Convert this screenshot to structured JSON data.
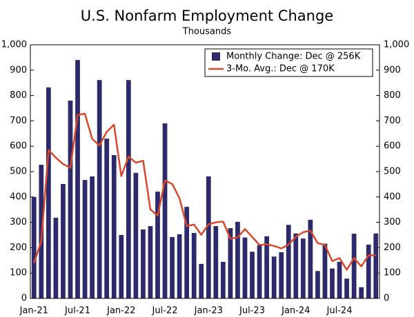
{
  "chart_data": {
    "type": "bar_line",
    "title": "U.S. Nonfarm Employment Change",
    "subtitle": "Thousands",
    "categories": [
      "Jan-21",
      null,
      null,
      null,
      null,
      null,
      "Jul-21",
      null,
      null,
      null,
      null,
      null,
      "Jan-22",
      null,
      null,
      null,
      null,
      null,
      "Jul-22",
      null,
      null,
      null,
      null,
      null,
      "Jan-23",
      null,
      null,
      null,
      null,
      null,
      "Jul-23",
      null,
      null,
      null,
      null,
      null,
      "Jan-24",
      null,
      null,
      null,
      null,
      null,
      "Jul-24",
      null,
      null,
      null,
      null,
      null
    ],
    "series": [
      {
        "name": "Monthly Change: Dec @ 256K",
        "color": "#2d2a6c",
        "kind": "bar",
        "values": [
          400,
          527,
          832,
          318,
          451,
          780,
          940,
          467,
          481,
          861,
          630,
          565,
          250,
          861,
          495,
          272,
          285,
          421,
          690,
          242,
          253,
          361,
          258,
          136,
          481,
          285,
          144,
          277,
          302,
          240,
          184,
          210,
          245,
          165,
          182,
          290,
          256,
          236,
          310,
          108,
          216,
          118,
          144,
          78,
          255,
          44,
          212,
          256
        ]
      },
      {
        "name": "3-Mo. Avg.: Dec @ 170K",
        "color": "#d9472b",
        "kind": "line",
        "values": [
          140,
          225,
          585,
          555,
          530,
          515,
          724,
          728,
          629,
          603,
          657,
          685,
          482,
          559,
          535,
          543,
          351,
          326,
          465,
          451,
          395,
          285,
          291,
          251,
          292,
          300,
          303,
          235,
          241,
          273,
          242,
          211,
          213,
          207,
          197,
          212,
          243,
          261,
          267,
          218,
          211,
          147,
          159,
          113,
          159,
          126,
          170,
          170
        ]
      }
    ],
    "ylim": [
      0,
      1000
    ],
    "yticks": [
      0,
      100,
      200,
      300,
      400,
      500,
      600,
      700,
      800,
      900,
      {
        "value": 1000,
        "label": "1,000"
      }
    ],
    "y2lim": [
      0,
      1000
    ],
    "y2ticks": [
      0,
      100,
      200,
      300,
      400,
      500,
      600,
      700,
      800,
      900,
      {
        "value": 1000,
        "label": "1,000"
      }
    ],
    "legend": "top-right"
  }
}
